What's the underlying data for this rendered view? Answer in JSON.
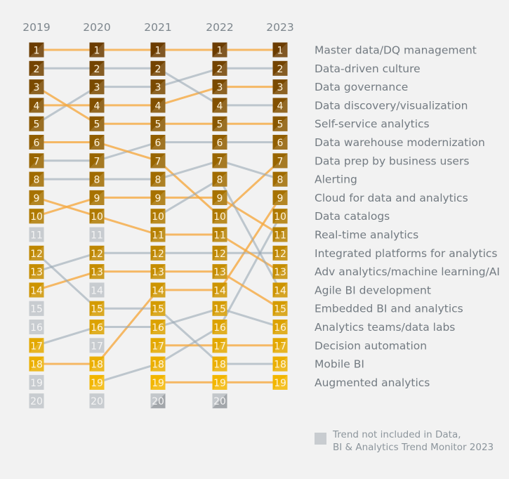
{
  "chart_data": {
    "type": "bump",
    "years": [
      "2019",
      "2020",
      "2021",
      "2022",
      "2023"
    ],
    "trends": [
      {
        "name": "Master data/DQ management",
        "ranks": [
          1,
          1,
          1,
          1,
          1
        ],
        "line": "orange"
      },
      {
        "name": "Data-driven culture",
        "ranks": [
          5,
          3,
          3,
          2,
          2
        ],
        "line": "gray"
      },
      {
        "name": "Data governance",
        "ranks": [
          4,
          4,
          4,
          3,
          3
        ],
        "line": "orange"
      },
      {
        "name": "Data discovery/visualization",
        "ranks": [
          2,
          2,
          2,
          4,
          4
        ],
        "line": "gray"
      },
      {
        "name": "Self-service analytics",
        "ranks": [
          3,
          5,
          5,
          5,
          5
        ],
        "line": "orange"
      },
      {
        "name": "Data warehouse modernization",
        "ranks": [
          7,
          7,
          6,
          6,
          6
        ],
        "line": "gray"
      },
      {
        "name": "Data prep by business users",
        "ranks": [
          6,
          6,
          7,
          10,
          7
        ],
        "line": "orange"
      },
      {
        "name": "Alerting",
        "ranks": [
          8,
          8,
          8,
          7,
          8
        ],
        "line": "gray"
      },
      {
        "name": "Cloud for data and analytics",
        "ranks": [
          18,
          18,
          14,
          14,
          9
        ],
        "line": "orange"
      },
      {
        "name": "Data catalogs",
        "ranks": [
          null,
          19,
          18,
          16,
          10
        ],
        "line": "gray"
      },
      {
        "name": "Real-time analytics",
        "ranks": [
          10,
          9,
          9,
          9,
          11
        ],
        "line": "orange"
      },
      {
        "name": "Integrated platforms for analytics",
        "ranks": [
          13,
          12,
          12,
          12,
          12
        ],
        "line": "gray"
      },
      {
        "name": "Adv analytics/machine learning/AI",
        "ranks": [
          9,
          10,
          11,
          11,
          13
        ],
        "line": "orange"
      },
      {
        "name": "Agile BI development",
        "ranks": [
          null,
          null,
          10,
          8,
          14
        ],
        "line": "gray"
      },
      {
        "name": "Embedded BI and analytics",
        "ranks": [
          14,
          13,
          13,
          13,
          15
        ],
        "line": "orange"
      },
      {
        "name": "Analytics teams/data labs",
        "ranks": [
          17,
          16,
          16,
          15,
          16
        ],
        "line": "gray"
      },
      {
        "name": "Decision automation",
        "ranks": [
          null,
          null,
          17,
          17,
          17
        ],
        "line": "orange"
      },
      {
        "name": "Mobile BI",
        "ranks": [
          12,
          15,
          15,
          18,
          18
        ],
        "line": "gray"
      },
      {
        "name": "Augmented analytics",
        "ranks": [
          null,
          null,
          19,
          19,
          19
        ],
        "line": "orange"
      }
    ],
    "not_included_ranks": {
      "2019": [
        11,
        15,
        16,
        19,
        20
      ],
      "2020": [
        11,
        14,
        17,
        20
      ],
      "2021": [
        20
      ],
      "2022": [
        20
      ],
      "2023": []
    },
    "colors": {
      "line_orange": "#f5a941",
      "line_gray": "#9aa8b4",
      "rank_top": "#6b3c00",
      "rank_bottom": "#f2b600",
      "not_included": "#c8ccd0"
    }
  },
  "legend": {
    "line1": "Trend not included in Data,",
    "line2": "BI & Analytics Trend Monitor 2023"
  }
}
